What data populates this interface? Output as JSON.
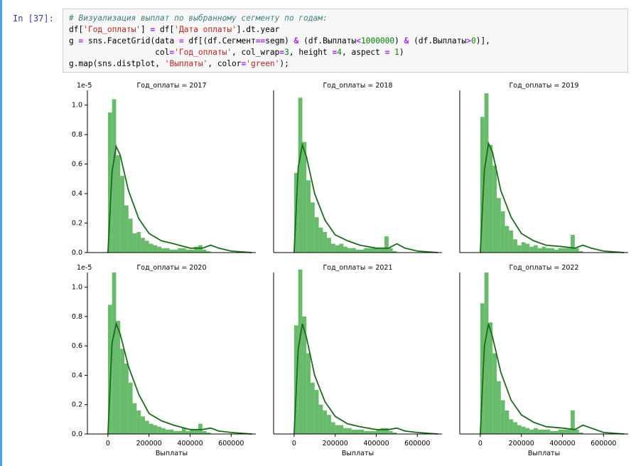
{
  "cell": {
    "prompt": "In [37]:",
    "code_lines": [
      [
        {
          "t": "# Визуализация выплат по выбранному сегменту по годам:",
          "c": "cm"
        }
      ],
      [
        {
          "t": "df[",
          "c": ""
        },
        {
          "t": "'Год_оплаты'",
          "c": "st"
        },
        {
          "t": "] ",
          "c": ""
        },
        {
          "t": "=",
          "c": "op"
        },
        {
          "t": " df[",
          "c": ""
        },
        {
          "t": "'Дата оплаты'",
          "c": "st"
        },
        {
          "t": "].dt.year",
          "c": ""
        }
      ],
      [
        {
          "t": "g ",
          "c": ""
        },
        {
          "t": "=",
          "c": "op"
        },
        {
          "t": " sns.FacetGrid(data ",
          "c": ""
        },
        {
          "t": "=",
          "c": "op"
        },
        {
          "t": " df[(df.Сегмент",
          "c": ""
        },
        {
          "t": "==",
          "c": "op"
        },
        {
          "t": "segm) ",
          "c": ""
        },
        {
          "t": "&",
          "c": "op"
        },
        {
          "t": " (df.Выплаты",
          "c": ""
        },
        {
          "t": "<",
          "c": "op"
        },
        {
          "t": "1000000",
          "c": "nu"
        },
        {
          "t": ") ",
          "c": ""
        },
        {
          "t": "&",
          "c": "op"
        },
        {
          "t": " (df.Выплаты",
          "c": ""
        },
        {
          "t": ">",
          "c": "op"
        },
        {
          "t": "0",
          "c": "nu"
        },
        {
          "t": ")],",
          "c": ""
        }
      ],
      [
        {
          "t": "                  col",
          "c": ""
        },
        {
          "t": "=",
          "c": "op"
        },
        {
          "t": "'Год_оплаты'",
          "c": "st"
        },
        {
          "t": ", col_wrap",
          "c": ""
        },
        {
          "t": "=",
          "c": "op"
        },
        {
          "t": "3",
          "c": "nu"
        },
        {
          "t": ", height ",
          "c": ""
        },
        {
          "t": "=",
          "c": "op"
        },
        {
          "t": "4",
          "c": "nu"
        },
        {
          "t": ", aspect ",
          "c": ""
        },
        {
          "t": "=",
          "c": "op"
        },
        {
          "t": " 1",
          "c": "nu"
        },
        {
          "t": ")",
          "c": ""
        }
      ],
      [
        {
          "t": "g.map(sns.distplot, ",
          "c": ""
        },
        {
          "t": "'Выплаты'",
          "c": "st"
        },
        {
          "t": ", color",
          "c": ""
        },
        {
          "t": "=",
          "c": "op"
        },
        {
          "t": "'green'",
          "c": "st"
        },
        {
          "t": ");",
          "c": ""
        }
      ]
    ]
  },
  "chart_data": [
    {
      "type": "bar",
      "title": "Год_оплаты = 2017",
      "xlabel": "",
      "ylabel": "",
      "y_scale_label": "1e-5",
      "xlim": [
        -100000,
        720000
      ],
      "ylim": [
        0,
        1.1
      ],
      "bin_width": 20000,
      "bin_start": 0,
      "values": [
        0.95,
        1.04,
        0.66,
        0.52,
        0.32,
        0.23,
        0.13,
        0.14,
        0.1,
        0.08,
        0.06,
        0.05,
        0.04,
        0.03,
        0.03,
        0.02,
        0.02,
        0.03,
        0.03,
        0.02,
        0.02,
        0.04,
        0.05,
        0.02,
        0.01
      ],
      "kde": {
        "x": [
          0,
          20000,
          40000,
          60000,
          100000,
          150000,
          200000,
          260000,
          320000,
          400000,
          460000,
          500000,
          540000,
          600000,
          700000
        ],
        "y": [
          0,
          0.55,
          0.72,
          0.66,
          0.42,
          0.23,
          0.13,
          0.08,
          0.06,
          0.03,
          0.03,
          0.05,
          0.03,
          0.01,
          0
        ]
      },
      "series_color": "#4caf50",
      "line_color": "#1b6b1b"
    },
    {
      "type": "bar",
      "title": "Год_оплаты = 2018",
      "xlabel": "",
      "ylabel": "",
      "y_scale_label": "",
      "xlim": [
        -100000,
        720000
      ],
      "ylim": [
        0,
        1.1
      ],
      "bin_width": 20000,
      "bin_start": 0,
      "values": [
        0.54,
        1.05,
        0.75,
        0.49,
        0.34,
        0.24,
        0.17,
        0.14,
        0.1,
        0.06,
        0.05,
        0.06,
        0.04,
        0.03,
        0.03,
        0.02,
        0.02,
        0.03,
        0.03,
        0.03,
        0.03,
        0.03,
        0.11,
        0.03,
        0.01
      ],
      "kde": {
        "x": [
          0,
          20000,
          40000,
          60000,
          100000,
          150000,
          200000,
          260000,
          320000,
          400000,
          460000,
          500000,
          540000,
          600000,
          700000
        ],
        "y": [
          0,
          0.58,
          0.73,
          0.65,
          0.4,
          0.22,
          0.12,
          0.08,
          0.05,
          0.03,
          0.03,
          0.06,
          0.03,
          0.01,
          0
        ]
      },
      "series_color": "#4caf50",
      "line_color": "#1b6b1b"
    },
    {
      "type": "bar",
      "title": "Год_оплаты = 2019",
      "xlabel": "",
      "ylabel": "",
      "y_scale_label": "",
      "xlim": [
        -100000,
        720000
      ],
      "ylim": [
        0,
        1.1
      ],
      "bin_width": 20000,
      "bin_start": 0,
      "values": [
        0.92,
        1.08,
        0.73,
        0.59,
        0.37,
        0.28,
        0.18,
        0.15,
        0.09,
        0.05,
        0.07,
        0.06,
        0.04,
        0.05,
        0.03,
        0.04,
        0.03,
        0.03,
        0.02,
        0.03,
        0.03,
        0.03,
        0.12,
        0.03,
        0.01
      ],
      "kde": {
        "x": [
          0,
          20000,
          40000,
          60000,
          100000,
          150000,
          200000,
          260000,
          320000,
          400000,
          460000,
          500000,
          540000,
          600000,
          700000
        ],
        "y": [
          0,
          0.56,
          0.74,
          0.68,
          0.42,
          0.24,
          0.13,
          0.08,
          0.05,
          0.04,
          0.03,
          0.05,
          0.03,
          0.01,
          0
        ]
      },
      "series_color": "#4caf50",
      "line_color": "#1b6b1b"
    },
    {
      "type": "bar",
      "title": "Год_оплаты = 2020",
      "xlabel": "",
      "ylabel": "",
      "y_scale_label": "1e-5",
      "xlim": [
        -100000,
        720000
      ],
      "ylim": [
        0,
        1.1
      ],
      "bin_width": 20000,
      "bin_start": 0,
      "values": [
        0.88,
        1.1,
        0.77,
        0.58,
        0.48,
        0.35,
        0.21,
        0.16,
        0.12,
        0.09,
        0.07,
        0.06,
        0.05,
        0.04,
        0.03,
        0.03,
        0.02,
        0.02,
        0.04,
        0.02,
        0.03,
        0.03,
        0.07,
        0.02,
        0.01
      ],
      "kde": {
        "x": [
          0,
          20000,
          40000,
          60000,
          100000,
          150000,
          200000,
          260000,
          320000,
          400000,
          460000,
          500000,
          540000,
          600000,
          700000
        ],
        "y": [
          0,
          0.62,
          0.75,
          0.68,
          0.46,
          0.27,
          0.14,
          0.09,
          0.06,
          0.03,
          0.03,
          0.04,
          0.02,
          0.01,
          0
        ]
      },
      "series_color": "#4caf50",
      "line_color": "#1b6b1b"
    },
    {
      "type": "bar",
      "title": "Год_оплаты = 2021",
      "xlabel": "",
      "ylabel": "",
      "y_scale_label": "",
      "xlim": [
        -100000,
        720000
      ],
      "ylim": [
        0,
        1.1
      ],
      "bin_width": 20000,
      "bin_start": 0,
      "values": [
        0.74,
        1.12,
        0.8,
        0.55,
        0.35,
        0.3,
        0.2,
        0.16,
        0.13,
        0.08,
        0.06,
        0.06,
        0.04,
        0.04,
        0.03,
        0.03,
        0.03,
        0.02,
        0.02,
        0.02,
        0.03,
        0.04,
        0.04,
        0.02,
        0.01
      ],
      "kde": {
        "x": [
          0,
          20000,
          40000,
          60000,
          100000,
          150000,
          200000,
          260000,
          320000,
          400000,
          460000,
          500000,
          540000,
          600000,
          700000
        ],
        "y": [
          0,
          0.58,
          0.75,
          0.66,
          0.4,
          0.22,
          0.12,
          0.07,
          0.05,
          0.03,
          0.03,
          0.04,
          0.02,
          0.01,
          0
        ]
      },
      "series_color": "#4caf50",
      "line_color": "#1b6b1b"
    },
    {
      "type": "bar",
      "title": "Год_оплаты = 2022",
      "xlabel": "",
      "ylabel": "",
      "y_scale_label": "",
      "xlim": [
        -100000,
        720000
      ],
      "ylim": [
        0,
        1.1
      ],
      "bin_width": 20000,
      "bin_start": 0,
      "values": [
        0.89,
        1.1,
        0.76,
        0.55,
        0.36,
        0.23,
        0.16,
        0.1,
        0.08,
        0.06,
        0.05,
        0.04,
        0.03,
        0.04,
        0.03,
        0.03,
        0.03,
        0.02,
        0.02,
        0.03,
        0.03,
        0.03,
        0.16,
        0.03,
        0.01
      ],
      "kde": {
        "x": [
          0,
          20000,
          40000,
          60000,
          100000,
          150000,
          200000,
          260000,
          320000,
          400000,
          460000,
          500000,
          540000,
          600000,
          700000
        ],
        "y": [
          0,
          0.6,
          0.75,
          0.66,
          0.42,
          0.23,
          0.13,
          0.08,
          0.05,
          0.04,
          0.03,
          0.06,
          0.04,
          0.01,
          0
        ]
      },
      "series_color": "#4caf50",
      "line_color": "#1b6b1b"
    }
  ],
  "axes": {
    "y_ticks": [
      0.0,
      0.2,
      0.4,
      0.6,
      0.8,
      1.0
    ],
    "y_tick_labels": [
      "0.0",
      "0.2",
      "0.4",
      "0.6",
      "0.8",
      "1.0"
    ],
    "x_ticks": [
      0,
      200000,
      400000,
      600000
    ],
    "x_tick_labels": [
      "0",
      "200000",
      "400000",
      "600000"
    ],
    "bottom_xlabel": "Выплаты"
  }
}
